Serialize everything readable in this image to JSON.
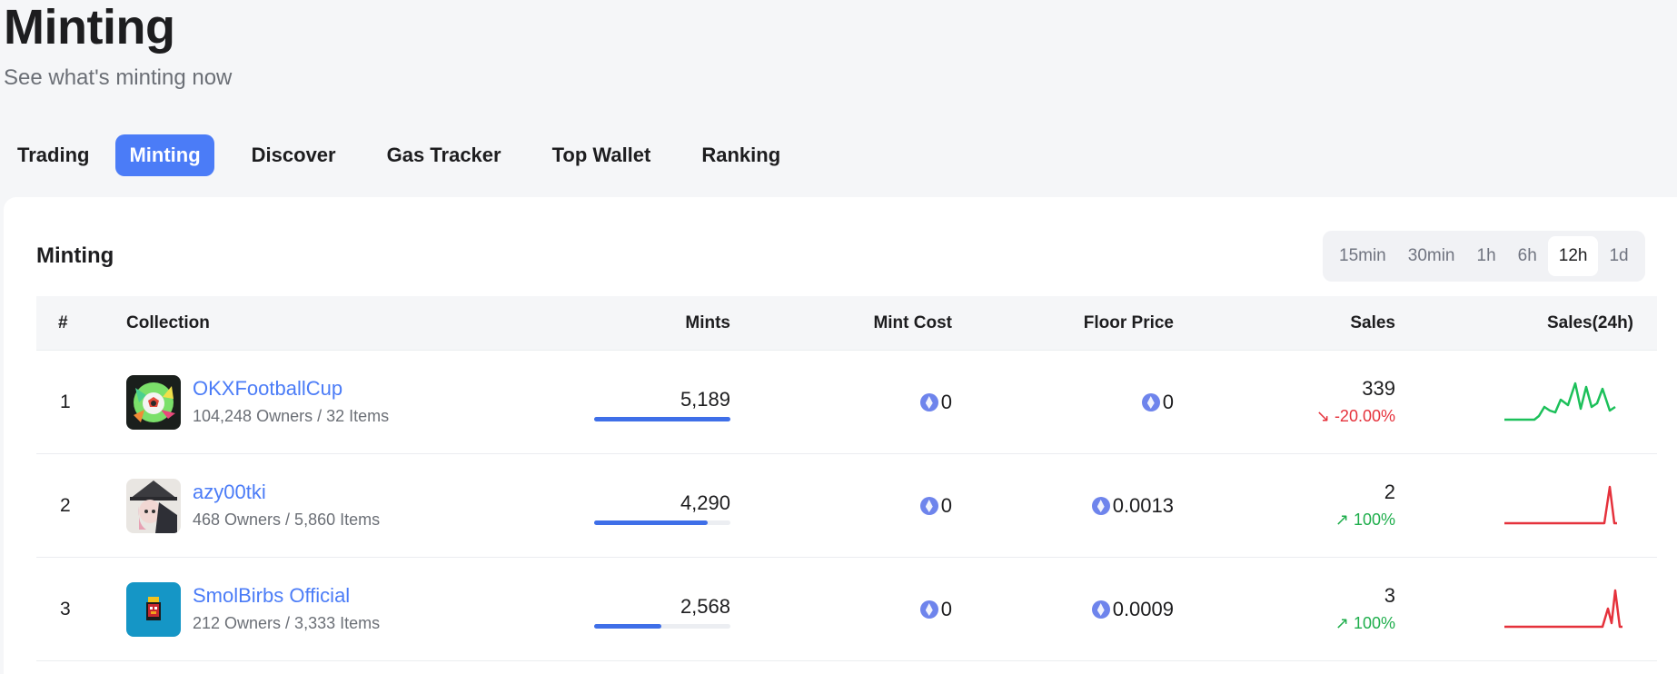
{
  "page": {
    "title": "Minting",
    "subtitle": "See what's minting now"
  },
  "nav": [
    {
      "label": "Trading",
      "active": false
    },
    {
      "label": "Minting",
      "active": true
    },
    {
      "label": "Discover",
      "active": false
    },
    {
      "label": "Gas Tracker",
      "active": false
    },
    {
      "label": "Top Wallet",
      "active": false
    },
    {
      "label": "Ranking",
      "active": false
    }
  ],
  "card": {
    "title": "Minting"
  },
  "ranges": [
    {
      "label": "15min",
      "active": false
    },
    {
      "label": "30min",
      "active": false
    },
    {
      "label": "1h",
      "active": false
    },
    {
      "label": "6h",
      "active": false
    },
    {
      "label": "12h",
      "active": true
    },
    {
      "label": "1d",
      "active": false
    }
  ],
  "columns": {
    "rank": "#",
    "collection": "Collection",
    "mints": "Mints",
    "mint_cost": "Mint Cost",
    "floor_price": "Floor Price",
    "sales": "Sales",
    "sales24": "Sales(24h)"
  },
  "colors": {
    "accent": "#4b7cf7",
    "up": "#1fae4c",
    "down": "#e5323c",
    "spark_green": "#1cc05a",
    "spark_red": "#e5323c"
  },
  "rows": [
    {
      "rank": "1",
      "name": "OKXFootballCup",
      "meta": "104,248 Owners / 32 Items",
      "avatar_icon": "football-avatar-icon",
      "mints": "5,189",
      "mints_fraction": 1.0,
      "mint_cost": "0",
      "floor_price": "0",
      "sales": "339",
      "sales_change": "↘ -20.00%",
      "trend": "down"
    },
    {
      "rank": "2",
      "name": "azy00tki",
      "meta": "468 Owners / 5,860 Items",
      "avatar_icon": "anime-character-avatar-icon",
      "mints": "4,290",
      "mints_fraction": 0.83,
      "mint_cost": "0",
      "floor_price": "0.0013",
      "sales": "2",
      "sales_change": "↗ 100%",
      "trend": "up"
    },
    {
      "rank": "3",
      "name": "SmolBirbs Official",
      "meta": "212 Owners / 3,333 Items",
      "avatar_icon": "pixel-bird-avatar-icon",
      "mints": "2,568",
      "mints_fraction": 0.49,
      "mint_cost": "0",
      "floor_price": "0.0009",
      "sales": "3",
      "sales_change": "↗ 100%",
      "trend": "up"
    }
  ]
}
